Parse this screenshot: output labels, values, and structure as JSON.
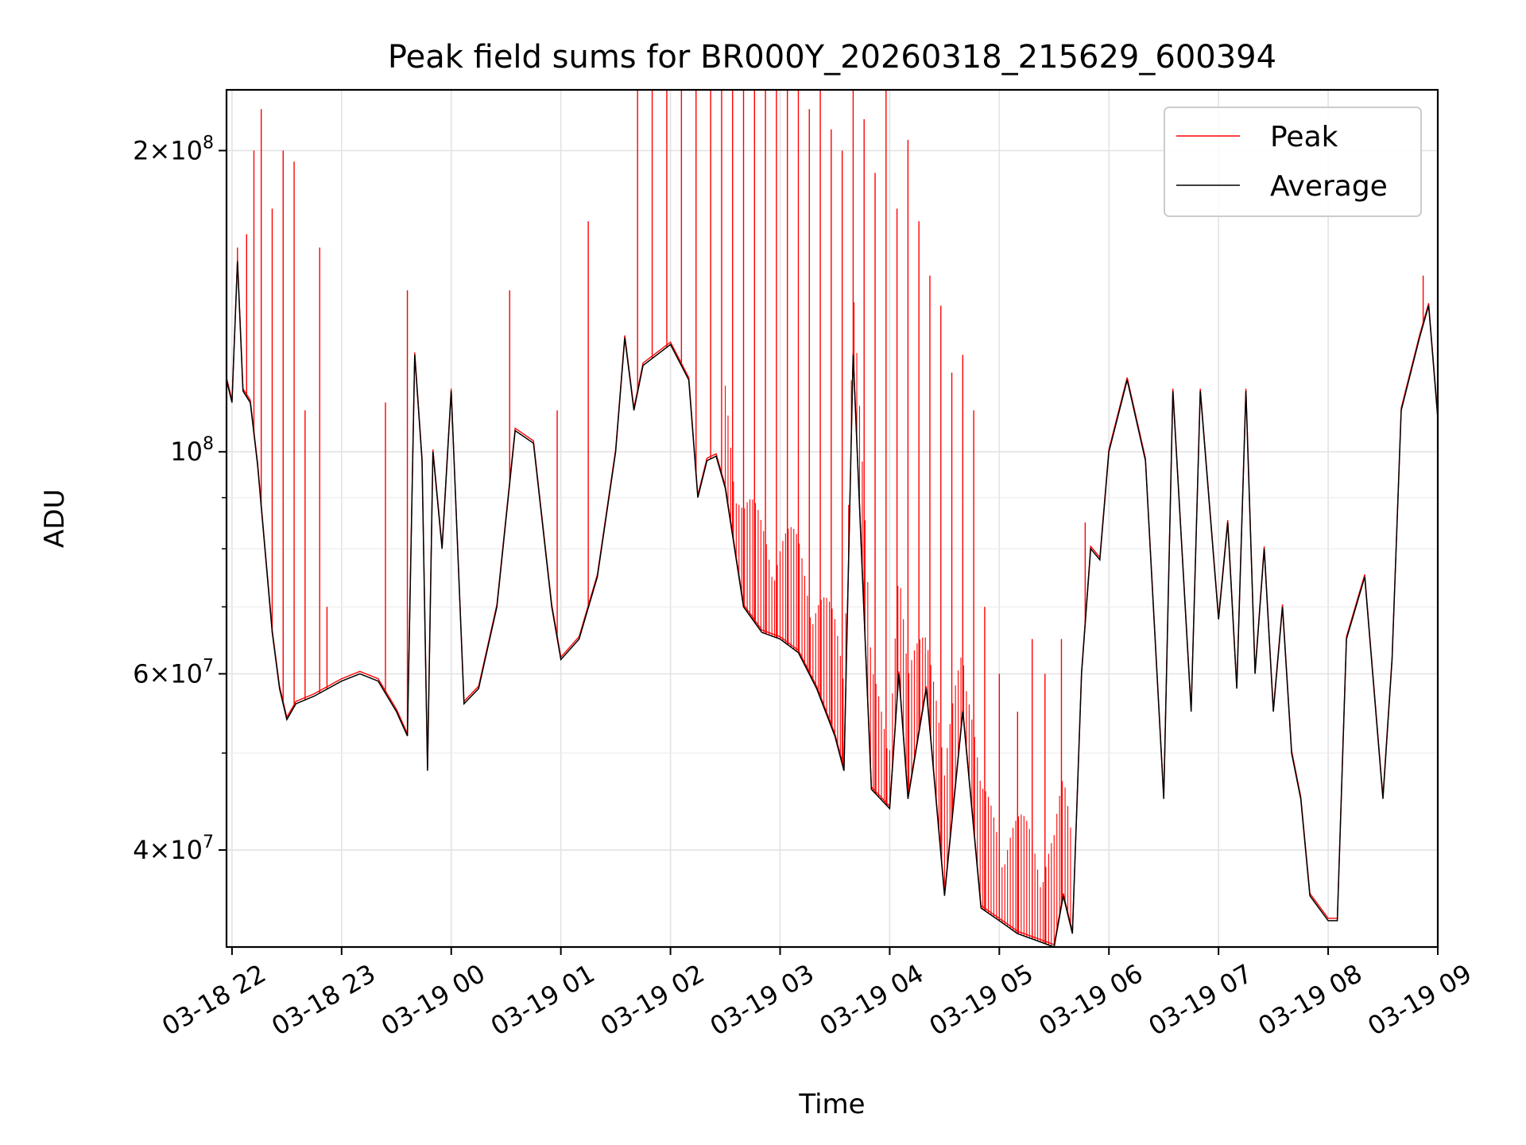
{
  "chart_data": {
    "type": "line",
    "title": "Peak field sums for BR000Y_20260318_215629_600394",
    "xlabel": "Time",
    "ylabel": "ADU",
    "yscale": "log",
    "ylim": [
      32000000,
      230000000
    ],
    "xlim": [
      "2026-03-18 21:57",
      "2026-03-19 09:00"
    ],
    "grid": true,
    "legend_position": "top-right",
    "x_ticks": [
      "03-18 22",
      "03-18 23",
      "03-19 00",
      "03-19 01",
      "03-19 02",
      "03-19 03",
      "03-19 04",
      "03-19 05",
      "03-19 06",
      "03-19 07",
      "03-19 08",
      "03-19 09"
    ],
    "y_ticks": [
      {
        "value": 40000000,
        "mantissa": "4",
        "exponent": "7"
      },
      {
        "value": 60000000,
        "mantissa": "6",
        "exponent": "7"
      },
      {
        "value": 100000000,
        "mantissa": "",
        "exponent": "8"
      },
      {
        "value": 200000000,
        "mantissa": "2",
        "exponent": "8"
      }
    ],
    "series": [
      {
        "name": "Average",
        "color": "#000000",
        "points": [
          [
            "2026-03-18 21:57",
            118000000
          ],
          [
            "2026-03-18 22:00",
            112000000
          ],
          [
            "2026-03-18 22:03",
            155000000
          ],
          [
            "2026-03-18 22:06",
            115000000
          ],
          [
            "2026-03-18 22:10",
            112000000
          ],
          [
            "2026-03-18 22:14",
            97000000
          ],
          [
            "2026-03-18 22:18",
            80000000
          ],
          [
            "2026-03-18 22:22",
            66000000
          ],
          [
            "2026-03-18 22:26",
            58000000
          ],
          [
            "2026-03-18 22:30",
            54000000
          ],
          [
            "2026-03-18 22:35",
            56000000
          ],
          [
            "2026-03-18 22:45",
            57000000
          ],
          [
            "2026-03-18 23:00",
            59000000
          ],
          [
            "2026-03-18 23:10",
            60000000
          ],
          [
            "2026-03-18 23:20",
            59000000
          ],
          [
            "2026-03-18 23:30",
            55000000
          ],
          [
            "2026-03-18 23:36",
            52000000
          ],
          [
            "2026-03-18 23:40",
            125000000
          ],
          [
            "2026-03-18 23:44",
            98000000
          ],
          [
            "2026-03-18 23:47",
            48000000
          ],
          [
            "2026-03-18 23:50",
            100000000
          ],
          [
            "2026-03-18 23:55",
            80000000
          ],
          [
            "2026-03-19 00:00",
            115000000
          ],
          [
            "2026-03-19 00:07",
            56000000
          ],
          [
            "2026-03-19 00:15",
            58000000
          ],
          [
            "2026-03-19 00:25",
            70000000
          ],
          [
            "2026-03-19 00:35",
            105000000
          ],
          [
            "2026-03-19 00:45",
            102000000
          ],
          [
            "2026-03-19 00:55",
            70000000
          ],
          [
            "2026-03-19 01:00",
            62000000
          ],
          [
            "2026-03-19 01:10",
            65000000
          ],
          [
            "2026-03-19 01:20",
            75000000
          ],
          [
            "2026-03-19 01:30",
            100000000
          ],
          [
            "2026-03-19 01:35",
            130000000
          ],
          [
            "2026-03-19 01:40",
            110000000
          ],
          [
            "2026-03-19 01:45",
            122000000
          ],
          [
            "2026-03-19 02:00",
            128000000
          ],
          [
            "2026-03-19 02:10",
            118000000
          ],
          [
            "2026-03-19 02:15",
            90000000
          ],
          [
            "2026-03-19 02:20",
            98000000
          ],
          [
            "2026-03-19 02:25",
            99000000
          ],
          [
            "2026-03-19 02:30",
            92000000
          ],
          [
            "2026-03-19 02:40",
            70000000
          ],
          [
            "2026-03-19 02:50",
            66000000
          ],
          [
            "2026-03-19 03:00",
            65000000
          ],
          [
            "2026-03-19 03:10",
            63000000
          ],
          [
            "2026-03-19 03:20",
            58000000
          ],
          [
            "2026-03-19 03:30",
            52000000
          ],
          [
            "2026-03-19 03:35",
            48000000
          ],
          [
            "2026-03-19 03:40",
            125000000
          ],
          [
            "2026-03-19 03:50",
            46000000
          ],
          [
            "2026-03-19 04:00",
            44000000
          ],
          [
            "2026-03-19 04:05",
            60000000
          ],
          [
            "2026-03-19 04:10",
            45000000
          ],
          [
            "2026-03-19 04:20",
            58000000
          ],
          [
            "2026-03-19 04:30",
            36000000
          ],
          [
            "2026-03-19 04:40",
            55000000
          ],
          [
            "2026-03-19 04:50",
            35000000
          ],
          [
            "2026-03-19 05:00",
            34000000
          ],
          [
            "2026-03-19 05:10",
            33000000
          ],
          [
            "2026-03-19 05:20",
            32500000
          ],
          [
            "2026-03-19 05:30",
            32000000
          ],
          [
            "2026-03-19 05:35",
            36000000
          ],
          [
            "2026-03-19 05:40",
            33000000
          ],
          [
            "2026-03-19 05:45",
            60000000
          ],
          [
            "2026-03-19 05:50",
            80000000
          ],
          [
            "2026-03-19 05:55",
            78000000
          ],
          [
            "2026-03-19 06:00",
            100000000
          ],
          [
            "2026-03-19 06:10",
            118000000
          ],
          [
            "2026-03-19 06:20",
            98000000
          ],
          [
            "2026-03-19 06:30",
            45000000
          ],
          [
            "2026-03-19 06:35",
            115000000
          ],
          [
            "2026-03-19 06:45",
            55000000
          ],
          [
            "2026-03-19 06:50",
            115000000
          ],
          [
            "2026-03-19 07:00",
            68000000
          ],
          [
            "2026-03-19 07:05",
            85000000
          ],
          [
            "2026-03-19 07:10",
            58000000
          ],
          [
            "2026-03-19 07:15",
            115000000
          ],
          [
            "2026-03-19 07:20",
            60000000
          ],
          [
            "2026-03-19 07:25",
            80000000
          ],
          [
            "2026-03-19 07:30",
            55000000
          ],
          [
            "2026-03-19 07:35",
            70000000
          ],
          [
            "2026-03-19 07:40",
            50000000
          ],
          [
            "2026-03-19 07:45",
            45000000
          ],
          [
            "2026-03-19 07:50",
            36000000
          ],
          [
            "2026-03-19 08:00",
            34000000
          ],
          [
            "2026-03-19 08:05",
            34000000
          ],
          [
            "2026-03-19 08:10",
            65000000
          ],
          [
            "2026-03-19 08:20",
            75000000
          ],
          [
            "2026-03-19 08:30",
            45000000
          ],
          [
            "2026-03-19 08:35",
            62000000
          ],
          [
            "2026-03-19 08:40",
            110000000
          ],
          [
            "2026-03-19 08:50",
            130000000
          ],
          [
            "2026-03-19 08:55",
            140000000
          ],
          [
            "2026-03-19 09:00",
            108000000
          ]
        ]
      },
      {
        "name": "Peak",
        "color": "#ff0000",
        "spikes": [
          [
            "2026-03-18 22:03",
            160000000
          ],
          [
            "2026-03-18 22:08",
            165000000
          ],
          [
            "2026-03-18 22:12",
            200000000
          ],
          [
            "2026-03-18 22:16",
            220000000
          ],
          [
            "2026-03-18 22:22",
            175000000
          ],
          [
            "2026-03-18 22:28",
            200000000
          ],
          [
            "2026-03-18 22:34",
            195000000
          ],
          [
            "2026-03-18 22:40",
            110000000
          ],
          [
            "2026-03-18 22:48",
            160000000
          ],
          [
            "2026-03-18 22:52",
            70000000
          ],
          [
            "2026-03-18 23:24",
            112000000
          ],
          [
            "2026-03-18 23:36",
            145000000
          ],
          [
            "2026-03-19 00:32",
            145000000
          ],
          [
            "2026-03-19 00:58",
            110000000
          ],
          [
            "2026-03-19 01:15",
            170000000
          ],
          [
            "2026-03-19 01:42",
            240000000
          ],
          [
            "2026-03-19 01:50",
            240000000
          ],
          [
            "2026-03-19 01:58",
            240000000
          ],
          [
            "2026-03-19 02:06",
            240000000
          ],
          [
            "2026-03-19 02:14",
            240000000
          ],
          [
            "2026-03-19 02:22",
            240000000
          ],
          [
            "2026-03-19 02:28",
            240000000
          ],
          [
            "2026-03-19 02:34",
            240000000
          ],
          [
            "2026-03-19 02:40",
            240000000
          ],
          [
            "2026-03-19 02:46",
            240000000
          ],
          [
            "2026-03-19 02:52",
            240000000
          ],
          [
            "2026-03-19 02:58",
            240000000
          ],
          [
            "2026-03-19 03:04",
            230000000
          ],
          [
            "2026-03-19 03:10",
            240000000
          ],
          [
            "2026-03-19 03:16",
            220000000
          ],
          [
            "2026-03-19 03:22",
            240000000
          ],
          [
            "2026-03-19 03:28",
            210000000
          ],
          [
            "2026-03-19 03:34",
            200000000
          ],
          [
            "2026-03-19 03:40",
            240000000
          ],
          [
            "2026-03-19 03:46",
            215000000
          ],
          [
            "2026-03-19 03:52",
            190000000
          ],
          [
            "2026-03-19 03:58",
            240000000
          ],
          [
            "2026-03-19 04:04",
            175000000
          ],
          [
            "2026-03-19 04:10",
            205000000
          ],
          [
            "2026-03-19 04:16",
            170000000
          ],
          [
            "2026-03-19 04:22",
            150000000
          ],
          [
            "2026-03-19 04:28",
            140000000
          ],
          [
            "2026-03-19 04:34",
            120000000
          ],
          [
            "2026-03-19 04:40",
            125000000
          ],
          [
            "2026-03-19 04:46",
            110000000
          ],
          [
            "2026-03-19 04:52",
            70000000
          ],
          [
            "2026-03-19 05:00",
            60000000
          ],
          [
            "2026-03-19 05:10",
            55000000
          ],
          [
            "2026-03-19 05:18",
            65000000
          ],
          [
            "2026-03-19 05:25",
            60000000
          ],
          [
            "2026-03-19 05:34",
            65000000
          ],
          [
            "2026-03-19 05:47",
            85000000
          ],
          [
            "2026-03-19 08:52",
            150000000
          ]
        ]
      }
    ]
  }
}
